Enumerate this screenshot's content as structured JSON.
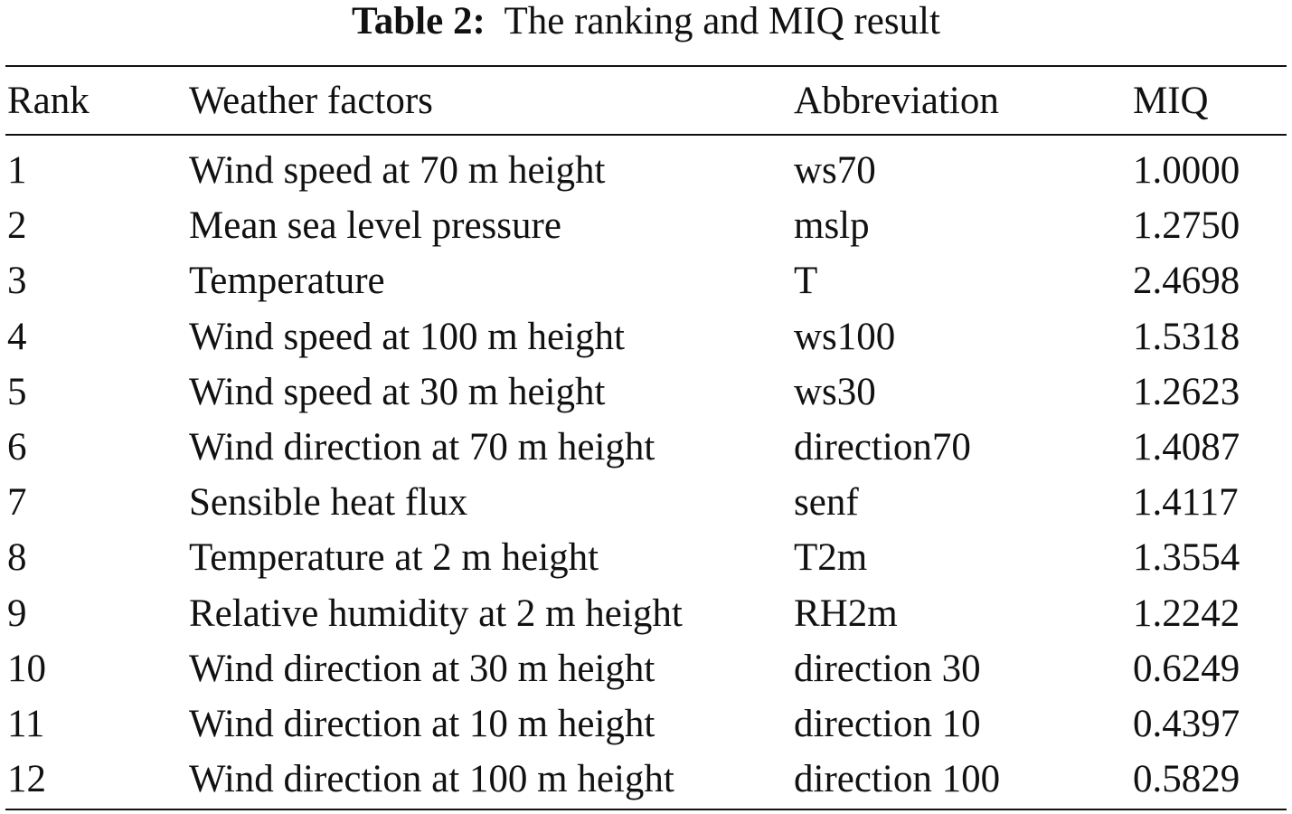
{
  "caption": {
    "label": "Table 2:",
    "text": "The ranking and MIQ result"
  },
  "table": {
    "headers": {
      "rank": "Rank",
      "factor": "Weather factors",
      "abbreviation": "Abbreviation",
      "miq": "MIQ"
    },
    "rows": [
      {
        "rank": "1",
        "factor": "Wind speed at 70 m height",
        "abbreviation": "ws70",
        "miq": "1.0000"
      },
      {
        "rank": "2",
        "factor": "Mean sea level pressure",
        "abbreviation": "mslp",
        "miq": "1.2750"
      },
      {
        "rank": "3",
        "factor": "Temperature",
        "abbreviation": "T",
        "miq": "2.4698"
      },
      {
        "rank": "4",
        "factor": "Wind speed at 100 m height",
        "abbreviation": "ws100",
        "miq": "1.5318"
      },
      {
        "rank": "5",
        "factor": "Wind speed at 30 m height",
        "abbreviation": "ws30",
        "miq": "1.2623"
      },
      {
        "rank": "6",
        "factor": "Wind direction at 70 m height",
        "abbreviation": "direction70",
        "miq": "1.4087"
      },
      {
        "rank": "7",
        "factor": "Sensible heat flux",
        "abbreviation": "senf",
        "miq": "1.4117"
      },
      {
        "rank": "8",
        "factor": "Temperature at 2 m height",
        "abbreviation": "T2m",
        "miq": "1.3554"
      },
      {
        "rank": "9",
        "factor": "Relative humidity at 2 m height",
        "abbreviation": "RH2m",
        "miq": "1.2242"
      },
      {
        "rank": "10",
        "factor": "Wind direction at 30 m height",
        "abbreviation": "direction 30",
        "miq": "0.6249"
      },
      {
        "rank": "11",
        "factor": "Wind direction at 10 m height",
        "abbreviation": "direction 10",
        "miq": "0.4397"
      },
      {
        "rank": "12",
        "factor": "Wind direction at 100 m height",
        "abbreviation": "direction 100",
        "miq": "0.5829"
      }
    ]
  }
}
